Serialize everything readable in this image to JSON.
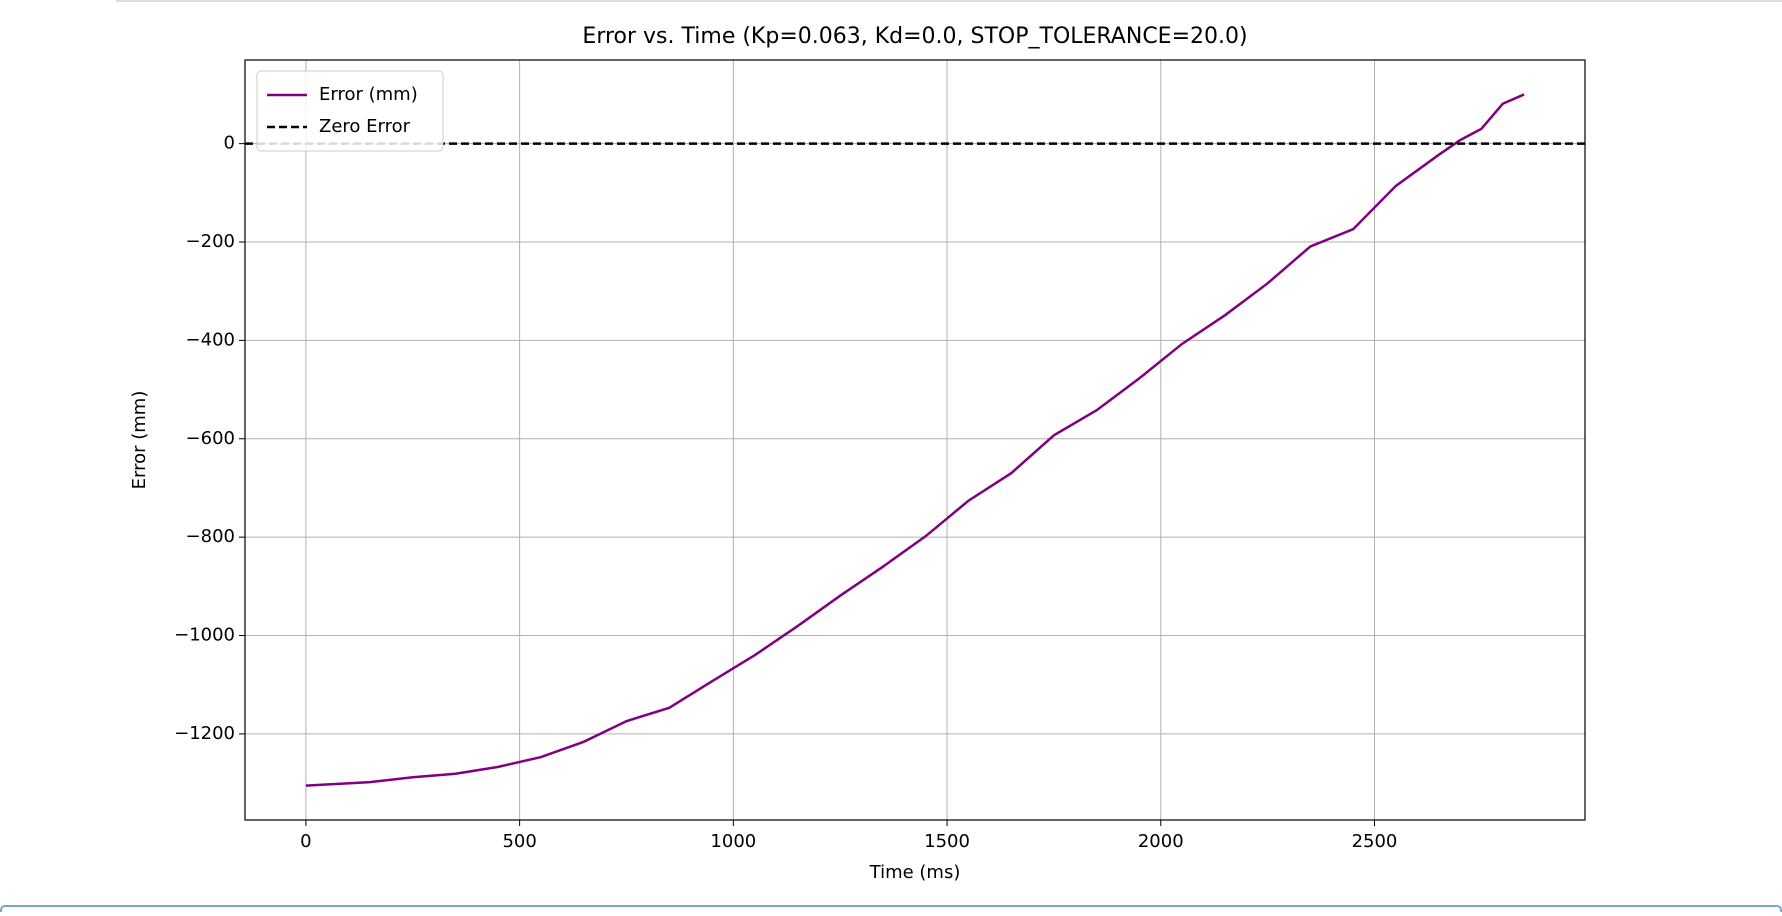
{
  "chart_data": {
    "type": "line",
    "title": "Error vs. Time (Kp=0.063, Kd=0.0, STOP_TOLERANCE=20.0)",
    "x_label": "Time (ms)",
    "y_label": "Error (mm)",
    "x": [
      0,
      150,
      250,
      350,
      450,
      550,
      650,
      750,
      850,
      950,
      1050,
      1150,
      1250,
      1350,
      1450,
      1550,
      1650,
      1750,
      1850,
      1950,
      2050,
      2150,
      2250,
      2350,
      2450,
      2550,
      2650,
      2700,
      2750,
      2800,
      2850
    ],
    "series": [
      {
        "name": "Error (mm)",
        "color": "#800080",
        "values": [
          -1305,
          -1298,
          -1288,
          -1281,
          -1267,
          -1247,
          -1216,
          -1174,
          -1147,
          -1093,
          -1040,
          -981,
          -919,
          -860,
          -798,
          -726,
          -670,
          -593,
          -542,
          -477,
          -407,
          -349,
          -284,
          -209,
          -174,
          -86,
          -23,
          7,
          30,
          81,
          100
        ]
      }
    ],
    "hlines": [
      {
        "name": "Zero Error",
        "value": 0,
        "color": "#000000",
        "dashed": true
      }
    ],
    "xlim": [
      -142.5,
      2992.5
    ],
    "ylim": [
      -1375,
      170
    ],
    "xticks": [
      0,
      500,
      1000,
      1500,
      2000,
      2500
    ],
    "yticks": [
      {
        "value": 0,
        "label": "0"
      },
      {
        "value": -200,
        "label": "−200"
      },
      {
        "value": -400,
        "label": "−400"
      },
      {
        "value": -600,
        "label": "−600"
      },
      {
        "value": -800,
        "label": "−800"
      },
      {
        "value": -1000,
        "label": "−1000"
      },
      {
        "value": -1200,
        "label": "−1200"
      }
    ],
    "grid": true,
    "legend": "upper left"
  }
}
